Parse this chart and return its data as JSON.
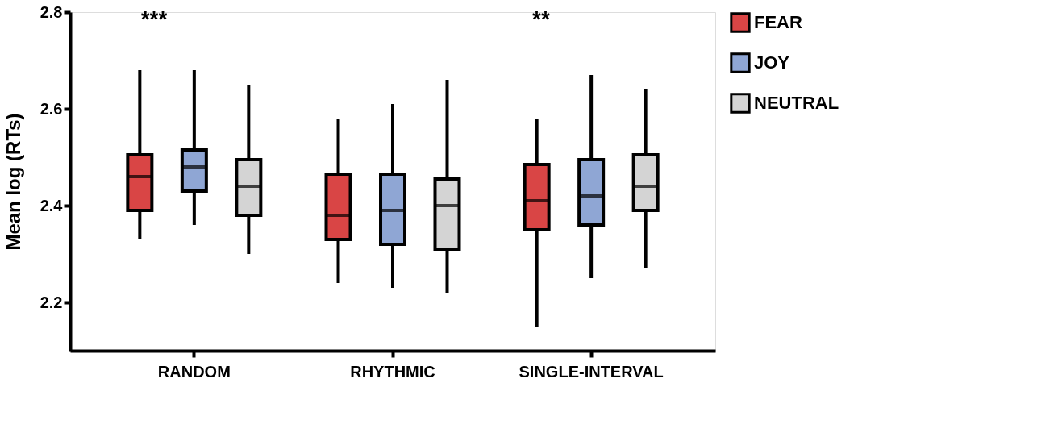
{
  "chart_data": {
    "type": "box",
    "ylabel": "Mean log (RTs)",
    "categories": [
      "RANDOM",
      "RHYTHMIC",
      "SINGLE-INTERVAL"
    ],
    "ylim": [
      2.1,
      2.8
    ],
    "yticks": [
      2.2,
      2.4,
      2.6,
      2.8
    ],
    "grid": false,
    "legend": "top right",
    "series": [
      {
        "name": "FEAR",
        "color": "#d94545",
        "boxes": [
          {
            "low": 2.33,
            "q1": 2.39,
            "median": 2.46,
            "q3": 2.505,
            "high": 2.68
          },
          {
            "low": 2.24,
            "q1": 2.33,
            "median": 2.38,
            "q3": 2.465,
            "high": 2.58
          },
          {
            "low": 2.15,
            "q1": 2.35,
            "median": 2.41,
            "q3": 2.485,
            "high": 2.58
          }
        ]
      },
      {
        "name": "JOY",
        "color": "#8fa6d4",
        "boxes": [
          {
            "low": 2.36,
            "q1": 2.43,
            "median": 2.48,
            "q3": 2.515,
            "high": 2.68
          },
          {
            "low": 2.23,
            "q1": 2.32,
            "median": 2.39,
            "q3": 2.465,
            "high": 2.61
          },
          {
            "low": 2.25,
            "q1": 2.36,
            "median": 2.42,
            "q3": 2.495,
            "high": 2.67
          }
        ]
      },
      {
        "name": "NEUTRAL",
        "color": "#d4d4d4",
        "boxes": [
          {
            "low": 2.3,
            "q1": 2.38,
            "median": 2.44,
            "q3": 2.495,
            "high": 2.65
          },
          {
            "low": 2.22,
            "q1": 2.31,
            "median": 2.4,
            "q3": 2.455,
            "high": 2.66
          },
          {
            "low": 2.27,
            "q1": 2.39,
            "median": 2.44,
            "q3": 2.505,
            "high": 2.64
          }
        ]
      }
    ],
    "annotations": [
      "***",
      "**"
    ]
  }
}
